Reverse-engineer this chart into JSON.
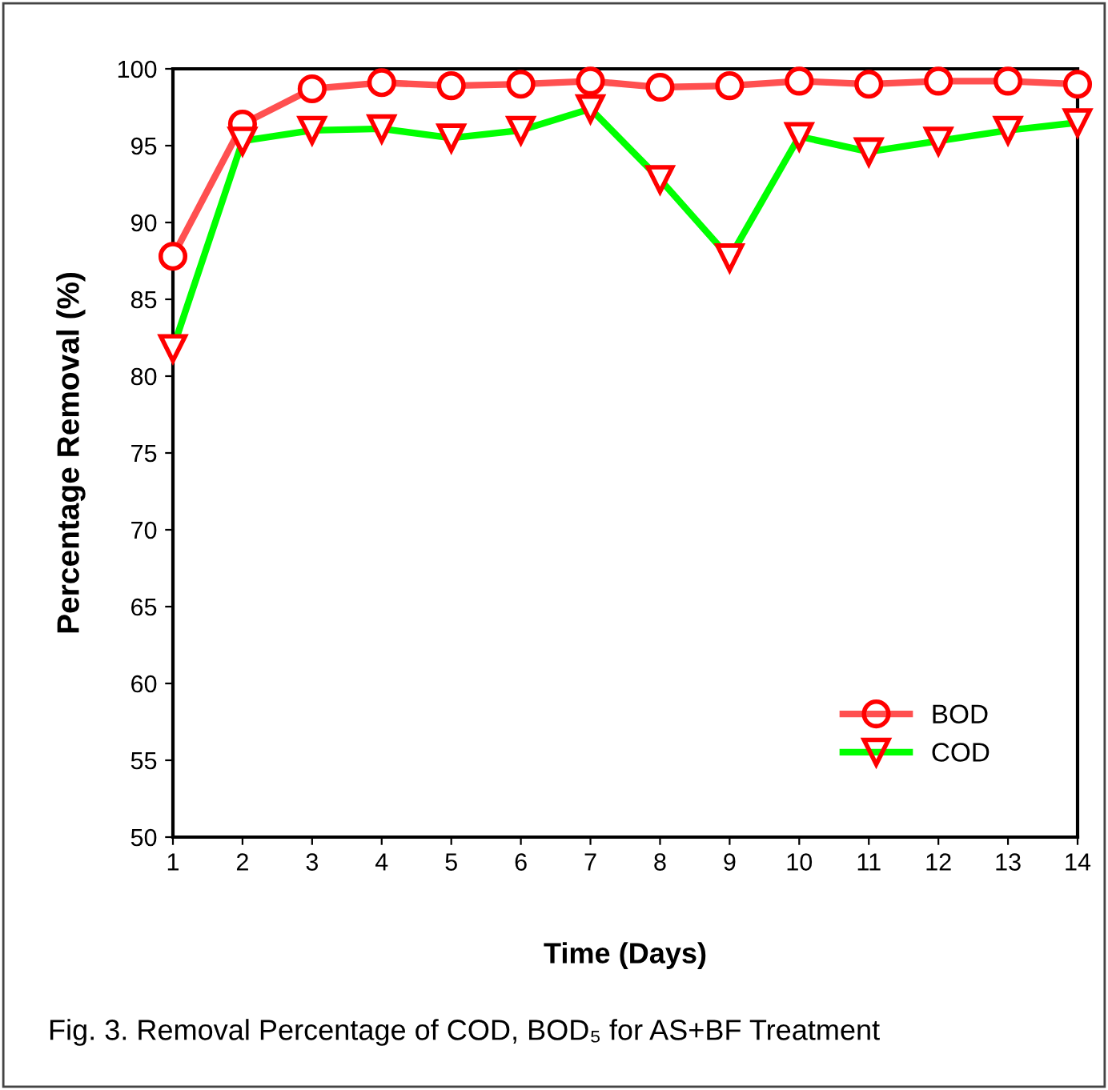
{
  "chart_data": {
    "type": "line",
    "xlabel": "Time (Days)",
    "ylabel": "Percentage Removal (%)",
    "x": [
      1,
      2,
      3,
      4,
      5,
      6,
      7,
      8,
      9,
      10,
      11,
      12,
      13,
      14
    ],
    "series": [
      {
        "name": "BOD",
        "color": "#ff5050",
        "marker": "circle",
        "values": [
          87.8,
          96.4,
          98.7,
          99.1,
          98.9,
          99.0,
          99.2,
          98.8,
          98.9,
          99.2,
          99.0,
          99.2,
          99.2,
          99.0
        ]
      },
      {
        "name": "COD",
        "color": "#00ff00",
        "marker": "triangle",
        "values": [
          81.8,
          95.3,
          96.0,
          96.1,
          95.5,
          96.0,
          97.4,
          92.8,
          87.7,
          95.6,
          94.6,
          95.3,
          96.0,
          96.5
        ]
      }
    ],
    "xlim": [
      1,
      14
    ],
    "xticks": [
      1,
      2,
      3,
      4,
      5,
      6,
      7,
      8,
      9,
      10,
      11,
      12,
      13,
      14
    ],
    "ylim": [
      50,
      100
    ],
    "yticks": [
      50,
      55,
      60,
      65,
      70,
      75,
      80,
      85,
      90,
      95,
      100
    ],
    "grid": false,
    "legend": "bottom right",
    "line_style": "solid",
    "annotations": [
      "Fig. 3. Removal Percentage of COD, BOD₅ for AS+BF Treatment"
    ]
  }
}
